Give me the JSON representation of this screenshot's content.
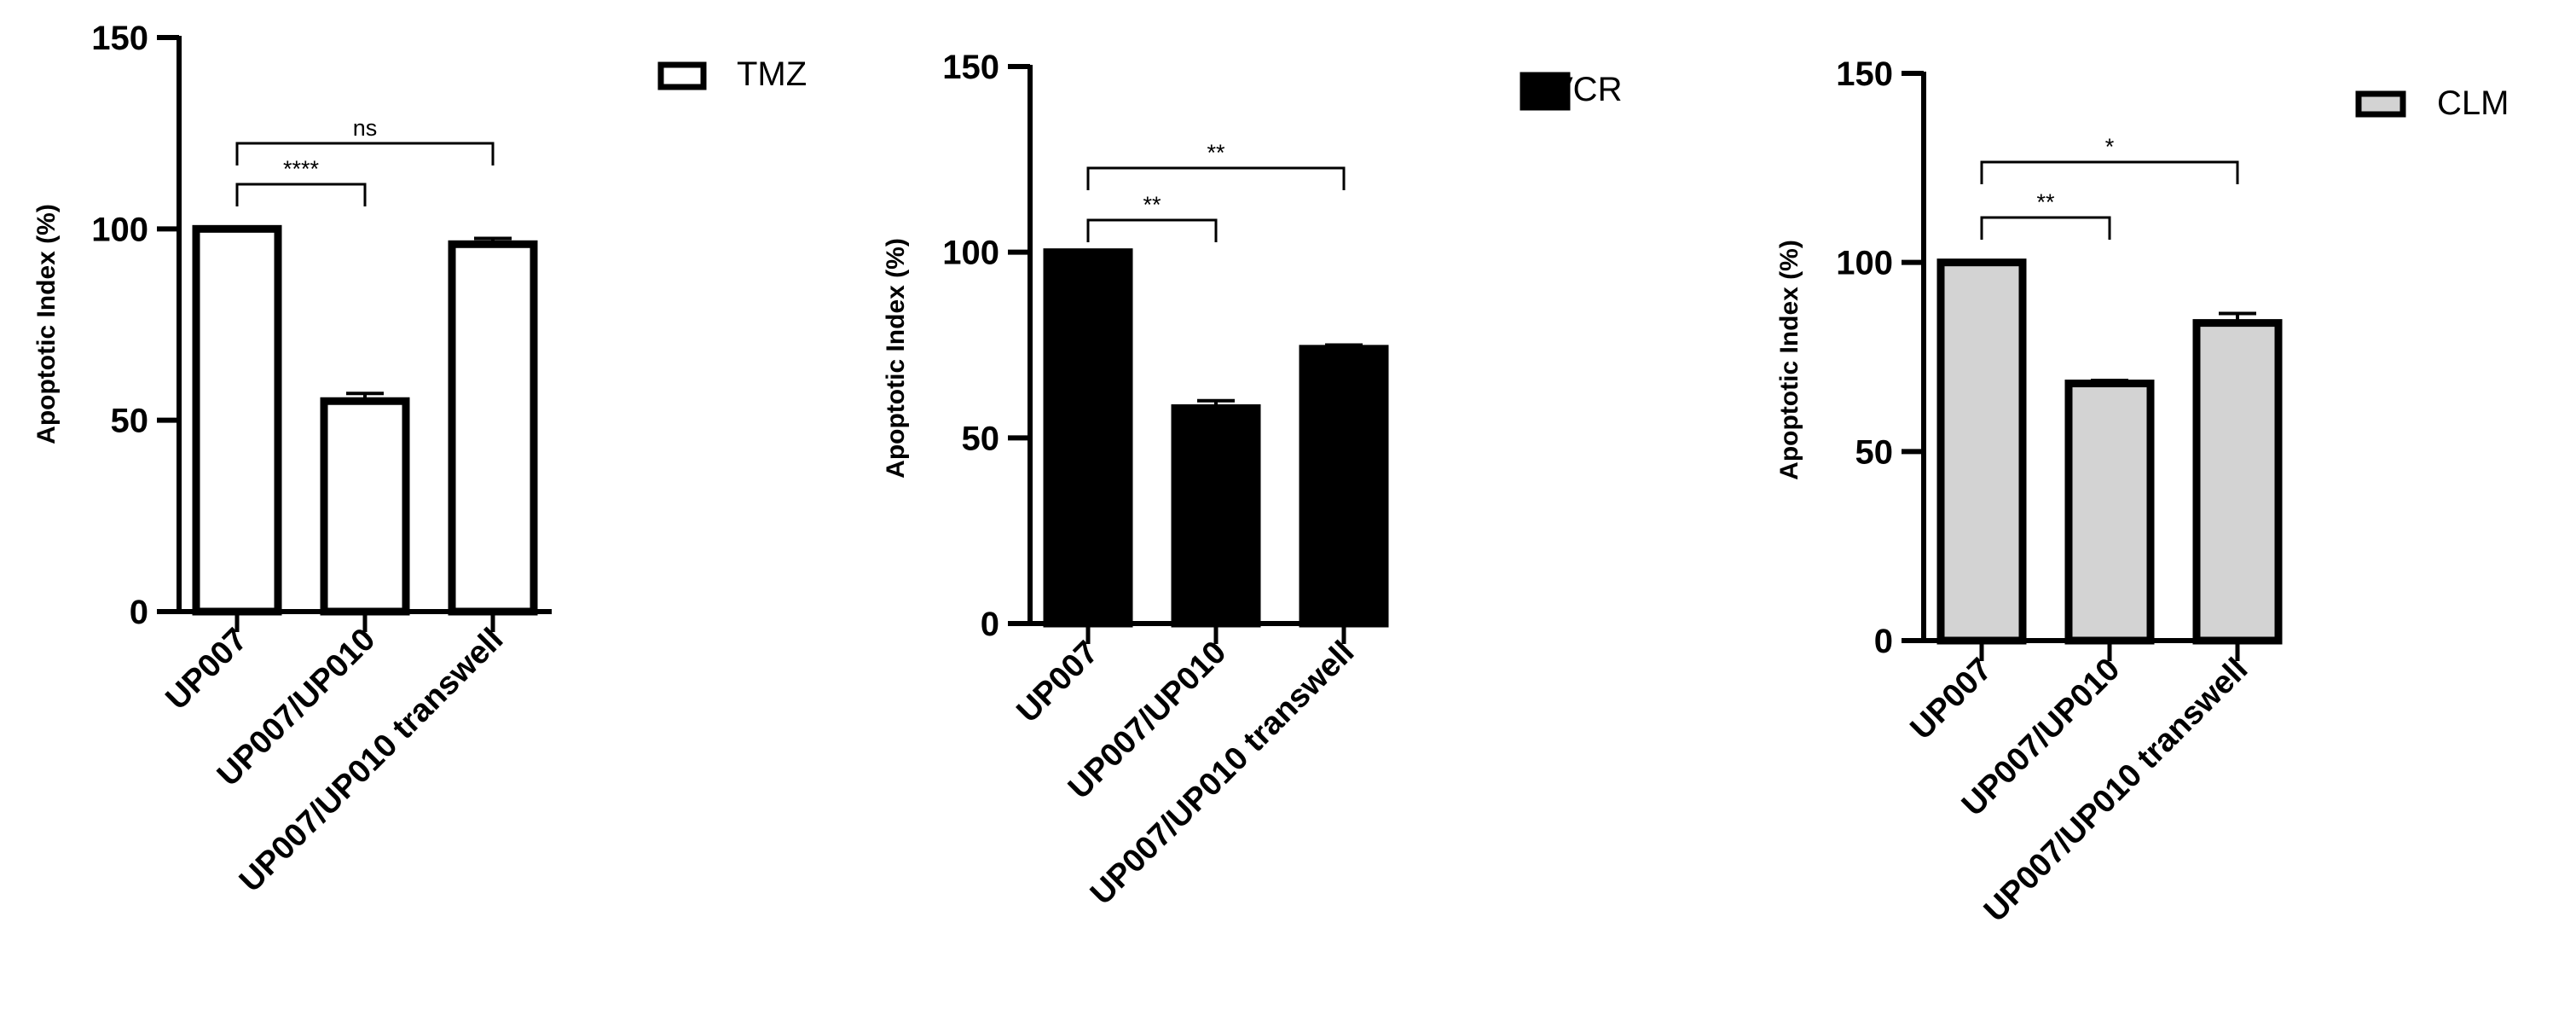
{
  "chart_data": [
    {
      "type": "bar",
      "categories": [
        "UP007",
        "UP007/UP010",
        "UP007/UP010 transwell"
      ],
      "series": [
        {
          "name": "TMZ",
          "values": [
            100,
            55,
            96
          ],
          "errors": [
            0,
            2,
            1.5
          ],
          "fill": "#ffffff"
        }
      ],
      "ylabel": "Apoptotic Index (%)",
      "ylim": [
        0,
        150
      ],
      "yticks": [
        "0",
        "50",
        "100",
        "150"
      ],
      "comparisons": [
        {
          "from": 0,
          "to": 1,
          "label": "****"
        },
        {
          "from": 0,
          "to": 2,
          "label": "ns"
        }
      ],
      "legend": "top-right",
      "grid": false
    },
    {
      "type": "bar",
      "categories": [
        "UP007",
        "UP007/UP010",
        "UP007/UP010 transwell"
      ],
      "series": [
        {
          "name": "VCR",
          "values": [
            100,
            58,
            74
          ],
          "errors": [
            0,
            2,
            1
          ],
          "fill": "#000000"
        }
      ],
      "ylabel": "Apoptotic Index (%)",
      "ylim": [
        0,
        150
      ],
      "yticks": [
        "0",
        "50",
        "100",
        "150"
      ],
      "comparisons": [
        {
          "from": 0,
          "to": 1,
          "label": "**"
        },
        {
          "from": 0,
          "to": 2,
          "label": "**"
        }
      ],
      "legend": "top-right",
      "grid": false
    },
    {
      "type": "bar",
      "categories": [
        "UP007",
        "UP007/UP010",
        "UP007/UP010 transwell"
      ],
      "series": [
        {
          "name": "CLM",
          "values": [
            100,
            68,
            84
          ],
          "errors": [
            0,
            0.8,
            2.5
          ],
          "fill": "#d3d3d3"
        }
      ],
      "ylabel": "Apoptotic Index (%)",
      "ylim": [
        0,
        150
      ],
      "yticks": [
        "0",
        "50",
        "100",
        "150"
      ],
      "comparisons": [
        {
          "from": 0,
          "to": 1,
          "label": "**"
        },
        {
          "from": 0,
          "to": 2,
          "label": "*"
        }
      ],
      "legend": "top-right",
      "grid": false
    }
  ]
}
